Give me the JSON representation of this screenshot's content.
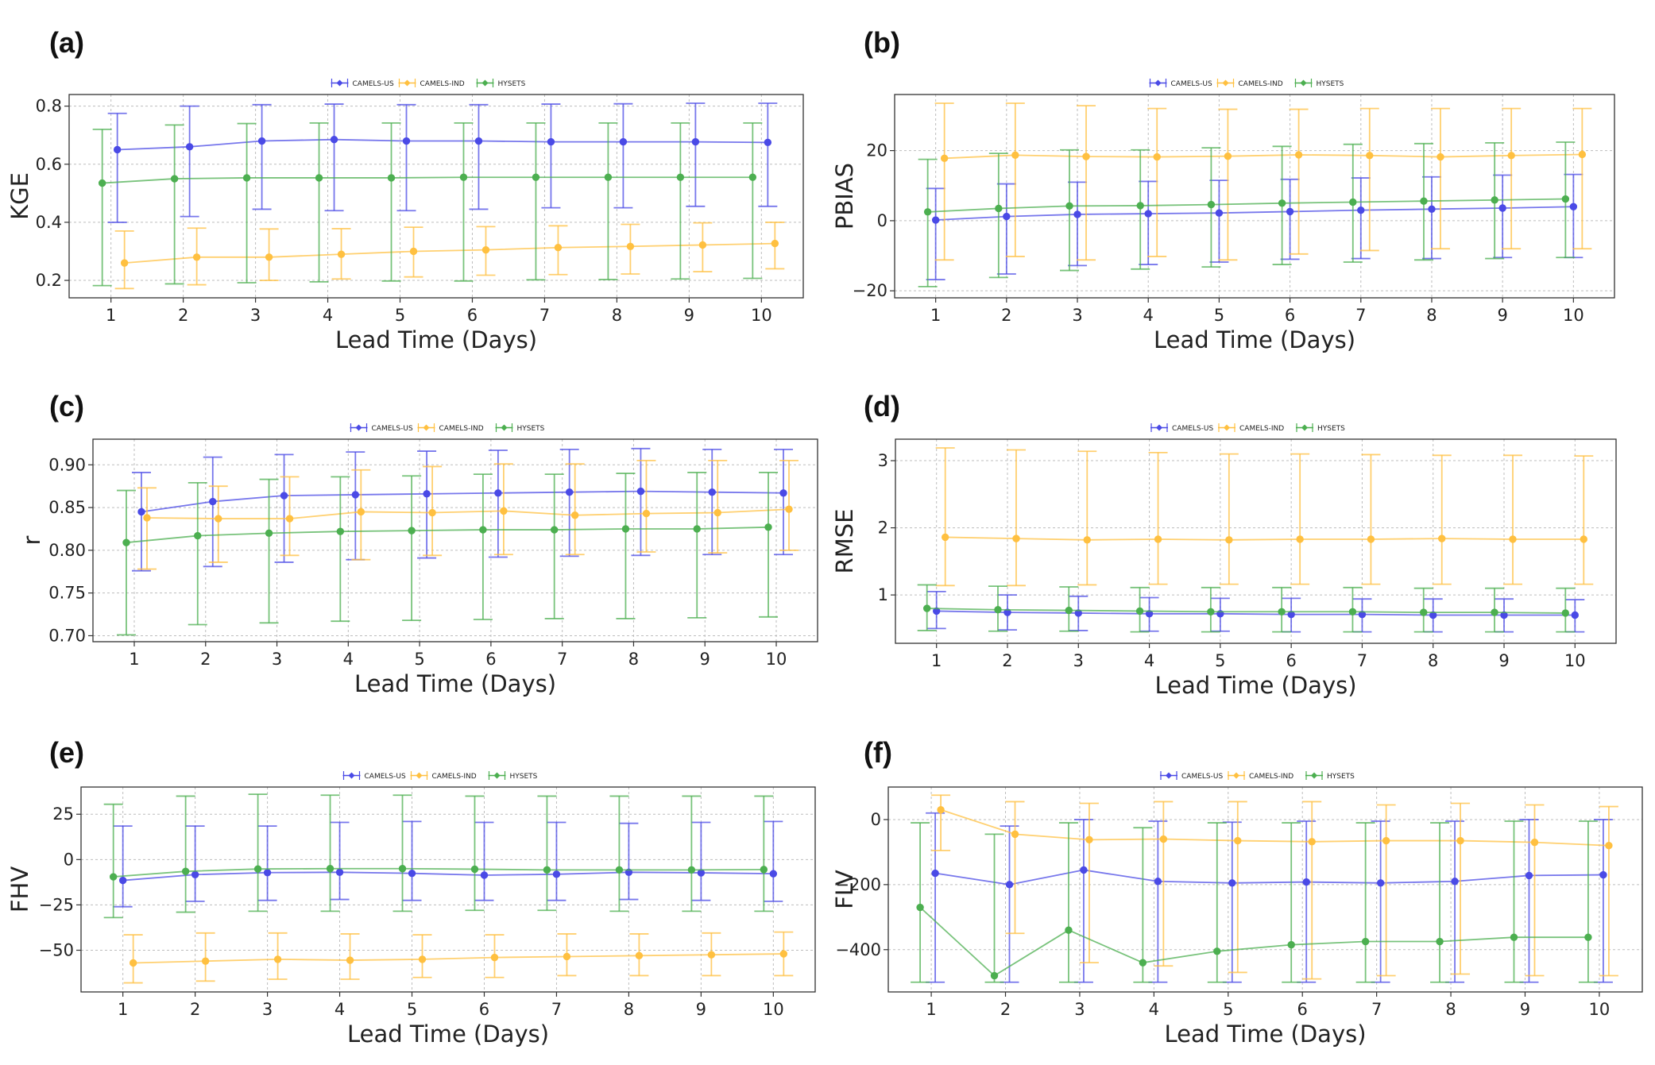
{
  "figure": {
    "x_label": "Lead Time (Days)",
    "series_names": [
      "CAMELS-US",
      "CAMELS-IND",
      "HYSETS"
    ],
    "series_colors": [
      "#4a4ae6",
      "#ffc040",
      "#4caf50"
    ]
  },
  "chart_data": [
    {
      "panel": "(a)",
      "type": "line-errorbar",
      "ylabel": "KGE",
      "x": [
        1,
        2,
        3,
        4,
        5,
        6,
        7,
        8,
        9,
        10
      ],
      "ylim": [
        0.14,
        0.84
      ],
      "yticks": [
        0.2,
        0.4,
        0.6,
        0.8
      ],
      "ytick_labels": [
        "0.2",
        "0.4",
        "0.6",
        "0.8"
      ],
      "series": [
        {
          "name": "CAMELS-US",
          "values": [
            0.65,
            0.66,
            0.68,
            0.685,
            0.68,
            0.68,
            0.677,
            0.677,
            0.677,
            0.675
          ],
          "lower": [
            0.4,
            0.42,
            0.445,
            0.44,
            0.44,
            0.445,
            0.45,
            0.45,
            0.455,
            0.455
          ],
          "upper": [
            0.775,
            0.8,
            0.805,
            0.807,
            0.805,
            0.805,
            0.807,
            0.808,
            0.81,
            0.81
          ]
        },
        {
          "name": "CAMELS-IND",
          "values": [
            0.26,
            0.28,
            0.28,
            0.29,
            0.3,
            0.305,
            0.313,
            0.317,
            0.322,
            0.327
          ],
          "lower": [
            0.172,
            0.185,
            0.2,
            0.205,
            0.212,
            0.218,
            0.22,
            0.222,
            0.23,
            0.24
          ],
          "upper": [
            0.37,
            0.38,
            0.377,
            0.378,
            0.383,
            0.385,
            0.388,
            0.393,
            0.398,
            0.4
          ]
        },
        {
          "name": "HYSETS",
          "values": [
            0.535,
            0.55,
            0.553,
            0.553,
            0.553,
            0.555,
            0.555,
            0.555,
            0.555,
            0.555
          ],
          "lower": [
            0.182,
            0.188,
            0.192,
            0.195,
            0.198,
            0.198,
            0.202,
            0.203,
            0.205,
            0.207
          ],
          "upper": [
            0.72,
            0.735,
            0.74,
            0.742,
            0.742,
            0.742,
            0.742,
            0.742,
            0.742,
            0.742
          ]
        }
      ]
    },
    {
      "panel": "(b)",
      "type": "line-errorbar",
      "ylabel": "PBIAS",
      "x": [
        1,
        2,
        3,
        4,
        5,
        6,
        7,
        8,
        9,
        10
      ],
      "ylim": [
        -22,
        36
      ],
      "yticks": [
        -20,
        0,
        20
      ],
      "ytick_labels": [
        "−20",
        "0",
        "20"
      ],
      "series": [
        {
          "name": "CAMELS-US",
          "values": [
            0.2,
            1.2,
            1.8,
            2.0,
            2.2,
            2.6,
            3.0,
            3.3,
            3.6,
            4.0
          ],
          "lower": [
            -16.8,
            -15.2,
            -12.8,
            -12.5,
            -11.8,
            -11.0,
            -10.8,
            -10.8,
            -10.5,
            -10.5
          ],
          "upper": [
            9.2,
            10.5,
            11.0,
            11.2,
            11.5,
            11.8,
            12.2,
            12.5,
            13.0,
            13.2
          ]
        },
        {
          "name": "CAMELS-IND",
          "values": [
            17.8,
            18.7,
            18.3,
            18.2,
            18.4,
            18.8,
            18.6,
            18.2,
            18.6,
            18.9
          ],
          "lower": [
            -11.2,
            -10.2,
            -11.2,
            -10.2,
            -11.2,
            -9.5,
            -8.5,
            -8.0,
            -8.0,
            -8.0
          ],
          "upper": [
            33.5,
            33.5,
            32.8,
            32.0,
            31.8,
            31.8,
            32.0,
            32.0,
            32.0,
            32.0
          ]
        },
        {
          "name": "HYSETS",
          "values": [
            2.5,
            3.5,
            4.2,
            4.3,
            4.6,
            5.0,
            5.3,
            5.6,
            5.9,
            6.2
          ],
          "lower": [
            -18.8,
            -16.2,
            -14.2,
            -13.8,
            -13.2,
            -12.5,
            -11.8,
            -11.2,
            -10.8,
            -10.5
          ],
          "upper": [
            17.5,
            19.2,
            20.2,
            20.2,
            20.8,
            21.2,
            21.8,
            22.0,
            22.2,
            22.4
          ]
        }
      ]
    },
    {
      "panel": "(c)",
      "type": "line-errorbar",
      "ylabel": "r",
      "x": [
        1,
        2,
        3,
        4,
        5,
        6,
        7,
        8,
        9,
        10
      ],
      "ylim": [
        0.693,
        0.93
      ],
      "yticks": [
        0.7,
        0.75,
        0.8,
        0.85,
        0.9
      ],
      "ytick_labels": [
        "0.70",
        "0.75",
        "0.80",
        "0.85",
        "0.90"
      ],
      "series": [
        {
          "name": "CAMELS-US",
          "values": [
            0.845,
            0.857,
            0.864,
            0.865,
            0.866,
            0.867,
            0.868,
            0.869,
            0.868,
            0.867
          ],
          "lower": [
            0.776,
            0.781,
            0.786,
            0.789,
            0.791,
            0.792,
            0.793,
            0.794,
            0.795,
            0.795
          ],
          "upper": [
            0.891,
            0.909,
            0.912,
            0.915,
            0.916,
            0.917,
            0.918,
            0.919,
            0.918,
            0.918
          ]
        },
        {
          "name": "CAMELS-IND",
          "values": [
            0.838,
            0.837,
            0.837,
            0.845,
            0.844,
            0.846,
            0.841,
            0.843,
            0.844,
            0.848
          ],
          "lower": [
            0.778,
            0.786,
            0.794,
            0.789,
            0.794,
            0.795,
            0.795,
            0.798,
            0.797,
            0.8
          ],
          "upper": [
            0.873,
            0.875,
            0.886,
            0.894,
            0.898,
            0.901,
            0.901,
            0.905,
            0.905,
            0.905
          ]
        },
        {
          "name": "HYSETS",
          "values": [
            0.809,
            0.817,
            0.82,
            0.822,
            0.823,
            0.824,
            0.824,
            0.825,
            0.825,
            0.827
          ],
          "lower": [
            0.701,
            0.713,
            0.715,
            0.717,
            0.718,
            0.719,
            0.72,
            0.72,
            0.721,
            0.722
          ],
          "upper": [
            0.87,
            0.879,
            0.883,
            0.886,
            0.887,
            0.889,
            0.889,
            0.89,
            0.891,
            0.891
          ]
        }
      ]
    },
    {
      "panel": "(d)",
      "type": "line-errorbar",
      "ylabel": "RMSE",
      "x": [
        1,
        2,
        3,
        4,
        5,
        6,
        7,
        8,
        9,
        10
      ],
      "ylim": [
        0.28,
        3.32
      ],
      "yticks": [
        1,
        2,
        3
      ],
      "ytick_labels": [
        "1",
        "2",
        "3"
      ],
      "series": [
        {
          "name": "CAMELS-US",
          "values": [
            0.76,
            0.74,
            0.73,
            0.72,
            0.72,
            0.71,
            0.71,
            0.7,
            0.7,
            0.7
          ],
          "lower": [
            0.5,
            0.48,
            0.47,
            0.46,
            0.46,
            0.45,
            0.45,
            0.45,
            0.45,
            0.45
          ],
          "upper": [
            1.05,
            1.0,
            0.98,
            0.96,
            0.95,
            0.95,
            0.94,
            0.94,
            0.94,
            0.93
          ]
        },
        {
          "name": "CAMELS-IND",
          "values": [
            1.86,
            1.84,
            1.82,
            1.83,
            1.82,
            1.83,
            1.83,
            1.84,
            1.83,
            1.83
          ],
          "lower": [
            1.14,
            1.14,
            1.15,
            1.16,
            1.16,
            1.16,
            1.16,
            1.16,
            1.16,
            1.16
          ],
          "upper": [
            3.19,
            3.16,
            3.14,
            3.12,
            3.1,
            3.1,
            3.09,
            3.08,
            3.08,
            3.07
          ]
        },
        {
          "name": "HYSETS",
          "values": [
            0.8,
            0.78,
            0.77,
            0.76,
            0.75,
            0.75,
            0.75,
            0.74,
            0.74,
            0.73
          ],
          "lower": [
            0.47,
            0.46,
            0.46,
            0.45,
            0.45,
            0.45,
            0.45,
            0.45,
            0.45,
            0.45
          ],
          "upper": [
            1.15,
            1.13,
            1.12,
            1.11,
            1.11,
            1.11,
            1.11,
            1.1,
            1.1,
            1.1
          ]
        }
      ]
    },
    {
      "panel": "(e)",
      "type": "line-errorbar",
      "ylabel": "FHV",
      "x": [
        1,
        2,
        3,
        4,
        5,
        6,
        7,
        8,
        9,
        10
      ],
      "ylim": [
        -73,
        40
      ],
      "yticks": [
        -50,
        -25,
        0,
        25
      ],
      "ytick_labels": [
        "−50",
        "−25",
        "0",
        "25"
      ],
      "series": [
        {
          "name": "CAMELS-US",
          "values": [
            -11.5,
            -8.3,
            -7.2,
            -7.0,
            -7.6,
            -8.6,
            -8.1,
            -7.0,
            -7.3,
            -7.8
          ],
          "lower": [
            -26,
            -23,
            -22.5,
            -22,
            -22.5,
            -22.5,
            -22.5,
            -22,
            -22.5,
            -23
          ],
          "upper": [
            18.5,
            18.5,
            18.5,
            20.5,
            21,
            20.5,
            20.5,
            20,
            20.5,
            21
          ]
        },
        {
          "name": "CAMELS-IND",
          "values": [
            -57,
            -56,
            -55,
            -55.5,
            -55,
            -54,
            -53.5,
            -53,
            -52.5,
            -52
          ],
          "lower": [
            -68,
            -67,
            -66,
            -66,
            -65,
            -65,
            -64,
            -64,
            -64,
            -64
          ],
          "upper": [
            -41.5,
            -40.5,
            -40.5,
            -41,
            -41.5,
            -41.5,
            -41,
            -41,
            -40.5,
            -40
          ]
        },
        {
          "name": "HYSETS",
          "values": [
            -9.5,
            -6.5,
            -5.2,
            -5.0,
            -5.0,
            -5.3,
            -5.7,
            -5.7,
            -5.7,
            -5.5
          ],
          "lower": [
            -32,
            -29,
            -28.5,
            -28.5,
            -28.5,
            -28,
            -28,
            -28.5,
            -28.5,
            -28.5
          ],
          "upper": [
            30.5,
            35,
            36,
            35.5,
            35.5,
            35,
            35,
            35,
            35,
            35
          ]
        }
      ]
    },
    {
      "panel": "(f)",
      "type": "line-errorbar",
      "ylabel": "FLV",
      "x": [
        1,
        2,
        3,
        4,
        5,
        6,
        7,
        8,
        9,
        10
      ],
      "ylim": [
        -530,
        100
      ],
      "yticks": [
        -400,
        -200,
        0
      ],
      "ytick_labels": [
        "−400",
        "−200",
        "0"
      ],
      "series": [
        {
          "name": "CAMELS-US",
          "values": [
            -165,
            -200,
            -155,
            -190,
            -195,
            -192,
            -195,
            -190,
            -172,
            -170
          ],
          "lower": [
            -500,
            -500,
            -500,
            -500,
            -500,
            -500,
            -500,
            -500,
            -500,
            -500
          ],
          "upper": [
            20,
            -20,
            0,
            -5,
            -8,
            -5,
            -5,
            -5,
            0,
            0
          ]
        },
        {
          "name": "CAMELS-IND",
          "values": [
            30,
            -45,
            -62,
            -60,
            -65,
            -68,
            -65,
            -65,
            -70,
            -80
          ],
          "lower": [
            -95,
            -350,
            -440,
            -450,
            -470,
            -490,
            -480,
            -475,
            -480,
            -480
          ],
          "upper": [
            75,
            55,
            50,
            55,
            55,
            55,
            45,
            50,
            45,
            40
          ]
        },
        {
          "name": "HYSETS",
          "values": [
            -270,
            -480,
            -340,
            -440,
            -405,
            -385,
            -375,
            -375,
            -362,
            -362
          ],
          "lower": [
            -500,
            -500,
            -500,
            -500,
            -500,
            -500,
            -500,
            -500,
            -500,
            -500
          ],
          "upper": [
            -10,
            -45,
            -10,
            -25,
            -10,
            -10,
            -10,
            -10,
            -5,
            -5
          ]
        }
      ]
    }
  ]
}
